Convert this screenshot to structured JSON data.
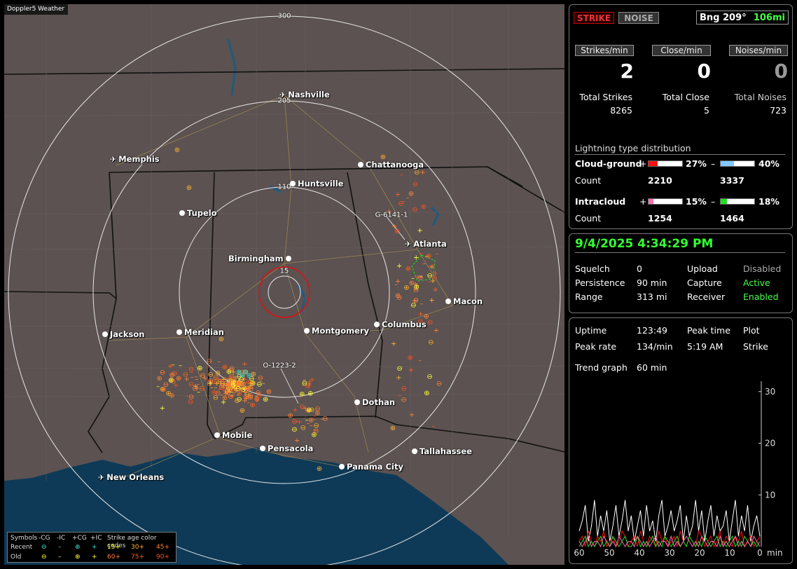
{
  "app_label": "Doppler5 Weather",
  "map": {
    "ring_labels": [
      "300",
      "205",
      "110",
      "15"
    ],
    "cities": [
      {
        "name": "Nashville",
        "icon": "plane-icon"
      },
      {
        "name": "Memphis",
        "icon": "plane-icon"
      },
      {
        "name": "Chattanooga",
        "icon": "dot"
      },
      {
        "name": "Huntsville",
        "icon": "dot"
      },
      {
        "name": "Tupelo",
        "icon": "dot"
      },
      {
        "name": "Atlanta",
        "icon": "plane-icon"
      },
      {
        "name": "Birmingham",
        "icon": "dot"
      },
      {
        "name": "Macon",
        "icon": "dot"
      },
      {
        "name": "Jackson",
        "icon": "dot"
      },
      {
        "name": "Meridian",
        "icon": "dot"
      },
      {
        "name": "Montgomery",
        "icon": "dot"
      },
      {
        "name": "Columbus",
        "icon": "dot"
      },
      {
        "name": "Dothan",
        "icon": "dot"
      },
      {
        "name": "Mobile",
        "icon": "dot"
      },
      {
        "name": "Pensacola",
        "icon": "dot"
      },
      {
        "name": "Tallahassee",
        "icon": "dot"
      },
      {
        "name": "Panama City",
        "icon": "dot"
      },
      {
        "name": "New Orleans",
        "icon": "plane-icon"
      }
    ],
    "storm_labels": [
      "G-6141-1",
      "O-1223-2"
    ],
    "colors": {
      "land": "#5b5251",
      "water": "#0e3a57",
      "rings": "#e8e8e8",
      "close_ring": "#e01010"
    }
  },
  "legend": {
    "symbols_label": "Symbols",
    "col_headers": [
      "-CG",
      "-IC",
      "+CG",
      "+IC"
    ],
    "age_title": "Strike age color codes",
    "recent_label": "Recent",
    "old_label": "Old",
    "recent_ages": [
      "15+",
      "30+",
      "45+"
    ],
    "old_ages": [
      "60+",
      "75+",
      "90+"
    ],
    "recent_color": "#40e0d0",
    "old_color": "#ffff30",
    "age_colors": [
      "#ffff30",
      "#ffb030",
      "#ff8030",
      "#ff8040",
      "#ff6020",
      "#ff5020"
    ]
  },
  "panel1": {
    "mode_strike": "STRIKE",
    "mode_noise": "NOISE",
    "bearing": "Bng 209°",
    "range": "106mi",
    "rate_headers": [
      "Strikes/min",
      "Close/min",
      "Noises/min"
    ],
    "rates": [
      "2",
      "0",
      "0"
    ],
    "total_labels": [
      "Total Strikes",
      "Total Close",
      "Total Noises"
    ],
    "totals": [
      "8265",
      "5",
      "723"
    ],
    "dist_title": "Lightning type distribution",
    "cg_label": "Cloud-ground",
    "ic_label": "Intracloud",
    "count_label": "Count",
    "plus": "+",
    "minus": "–",
    "cg_pos_pct": "27%",
    "cg_neg_pct": "40%",
    "cg_pos_count": "2210",
    "cg_neg_count": "3337",
    "ic_pos_pct": "15%",
    "ic_neg_pct": "18%",
    "ic_pos_count": "1254",
    "ic_neg_count": "1464",
    "cg_pos_frac": 0.27,
    "cg_neg_frac": 0.4,
    "ic_pos_frac": 0.15,
    "ic_neg_frac": 0.18,
    "colors": {
      "cg_pos": "#ff1010",
      "cg_neg": "#80c8ff",
      "ic_pos": "#ff70b0",
      "ic_neg": "#20e020"
    }
  },
  "panel2": {
    "datetime": "9/4/2025 4:34:29 PM",
    "squelch_label": "Squelch",
    "squelch": "0",
    "persistence_label": "Persistence",
    "persistence": "90 min",
    "range_label": "Range",
    "range": "313 mi",
    "upload_label": "Upload",
    "upload": "Disabled",
    "capture_label": "Capture",
    "capture": "Active",
    "receiver_label": "Receiver",
    "receiver": "Enabled"
  },
  "panel3": {
    "uptime_label": "Uptime",
    "uptime": "123:49",
    "peak_time_label": "Peak time",
    "peak_time": "5:19 AM",
    "plot_label": "Plot",
    "plot": "Strike",
    "peak_rate_label": "Peak rate",
    "peak_rate": "134/min",
    "trend_label": "Trend graph",
    "trend": "60 min"
  },
  "chart_data": {
    "type": "line",
    "title": "",
    "xlabel": "min",
    "ylabel": "",
    "x_ticks": [
      "60",
      "50",
      "40",
      "30",
      "20",
      "10",
      "0"
    ],
    "y_ticks": [
      "30",
      "20",
      "10"
    ],
    "xlim": [
      60,
      0
    ],
    "ylim": [
      0,
      32
    ],
    "series": [
      {
        "values": [
          3,
          5,
          8,
          1,
          4,
          9,
          2,
          6,
          3,
          7,
          1,
          4,
          8,
          2,
          5,
          9,
          3,
          6,
          1,
          4,
          7,
          2,
          8,
          3,
          5,
          1,
          6,
          9,
          2,
          4,
          7,
          3,
          5,
          8,
          1,
          6,
          2,
          4,
          9,
          3,
          7,
          1,
          5,
          8,
          2,
          6,
          3,
          4,
          7,
          1,
          5,
          9,
          2,
          6,
          3,
          8,
          1,
          4,
          6,
          2
        ],
        "color": "#ffffff"
      },
      {
        "values": [
          1,
          2,
          0,
          3,
          1,
          0,
          2,
          1,
          3,
          0,
          1,
          2,
          0,
          1,
          3,
          2,
          0,
          1,
          2,
          0,
          3,
          1,
          0,
          2,
          1,
          0,
          3,
          1,
          2,
          0,
          1,
          2,
          0,
          3,
          1,
          0,
          2,
          1,
          0,
          3,
          2,
          0,
          1,
          2,
          0,
          1,
          3,
          0,
          2,
          1,
          0,
          2,
          1,
          3,
          0,
          1,
          2,
          0,
          1,
          2
        ],
        "color": "#ff1010"
      },
      {
        "values": [
          0,
          1,
          2,
          0,
          1,
          0,
          1,
          2,
          0,
          1,
          0,
          2,
          1,
          0,
          1,
          2,
          0,
          0,
          1,
          2,
          0,
          1,
          0,
          1,
          2,
          0,
          1,
          0,
          2,
          1,
          0,
          1,
          2,
          0,
          1,
          0,
          2,
          1,
          0,
          1,
          0,
          2,
          1,
          0,
          1,
          2,
          0,
          1,
          0,
          1,
          2,
          0,
          1,
          0,
          2,
          1,
          0,
          1,
          0,
          1
        ],
        "color": "#20e020"
      },
      {
        "values": [
          1,
          0,
          1,
          2,
          0,
          1,
          1,
          0,
          2,
          1,
          0,
          1,
          0,
          2,
          1,
          0,
          1,
          1,
          0,
          2,
          1,
          0,
          1,
          0,
          1,
          2,
          0,
          1,
          1,
          0,
          2,
          0,
          1,
          0,
          1,
          2,
          1,
          0,
          1,
          0,
          2,
          1,
          0,
          1,
          1,
          0,
          2,
          0,
          1,
          0,
          1,
          2,
          0,
          1,
          0,
          1,
          0,
          2,
          1,
          0
        ],
        "color": "#ff70b0"
      }
    ]
  }
}
